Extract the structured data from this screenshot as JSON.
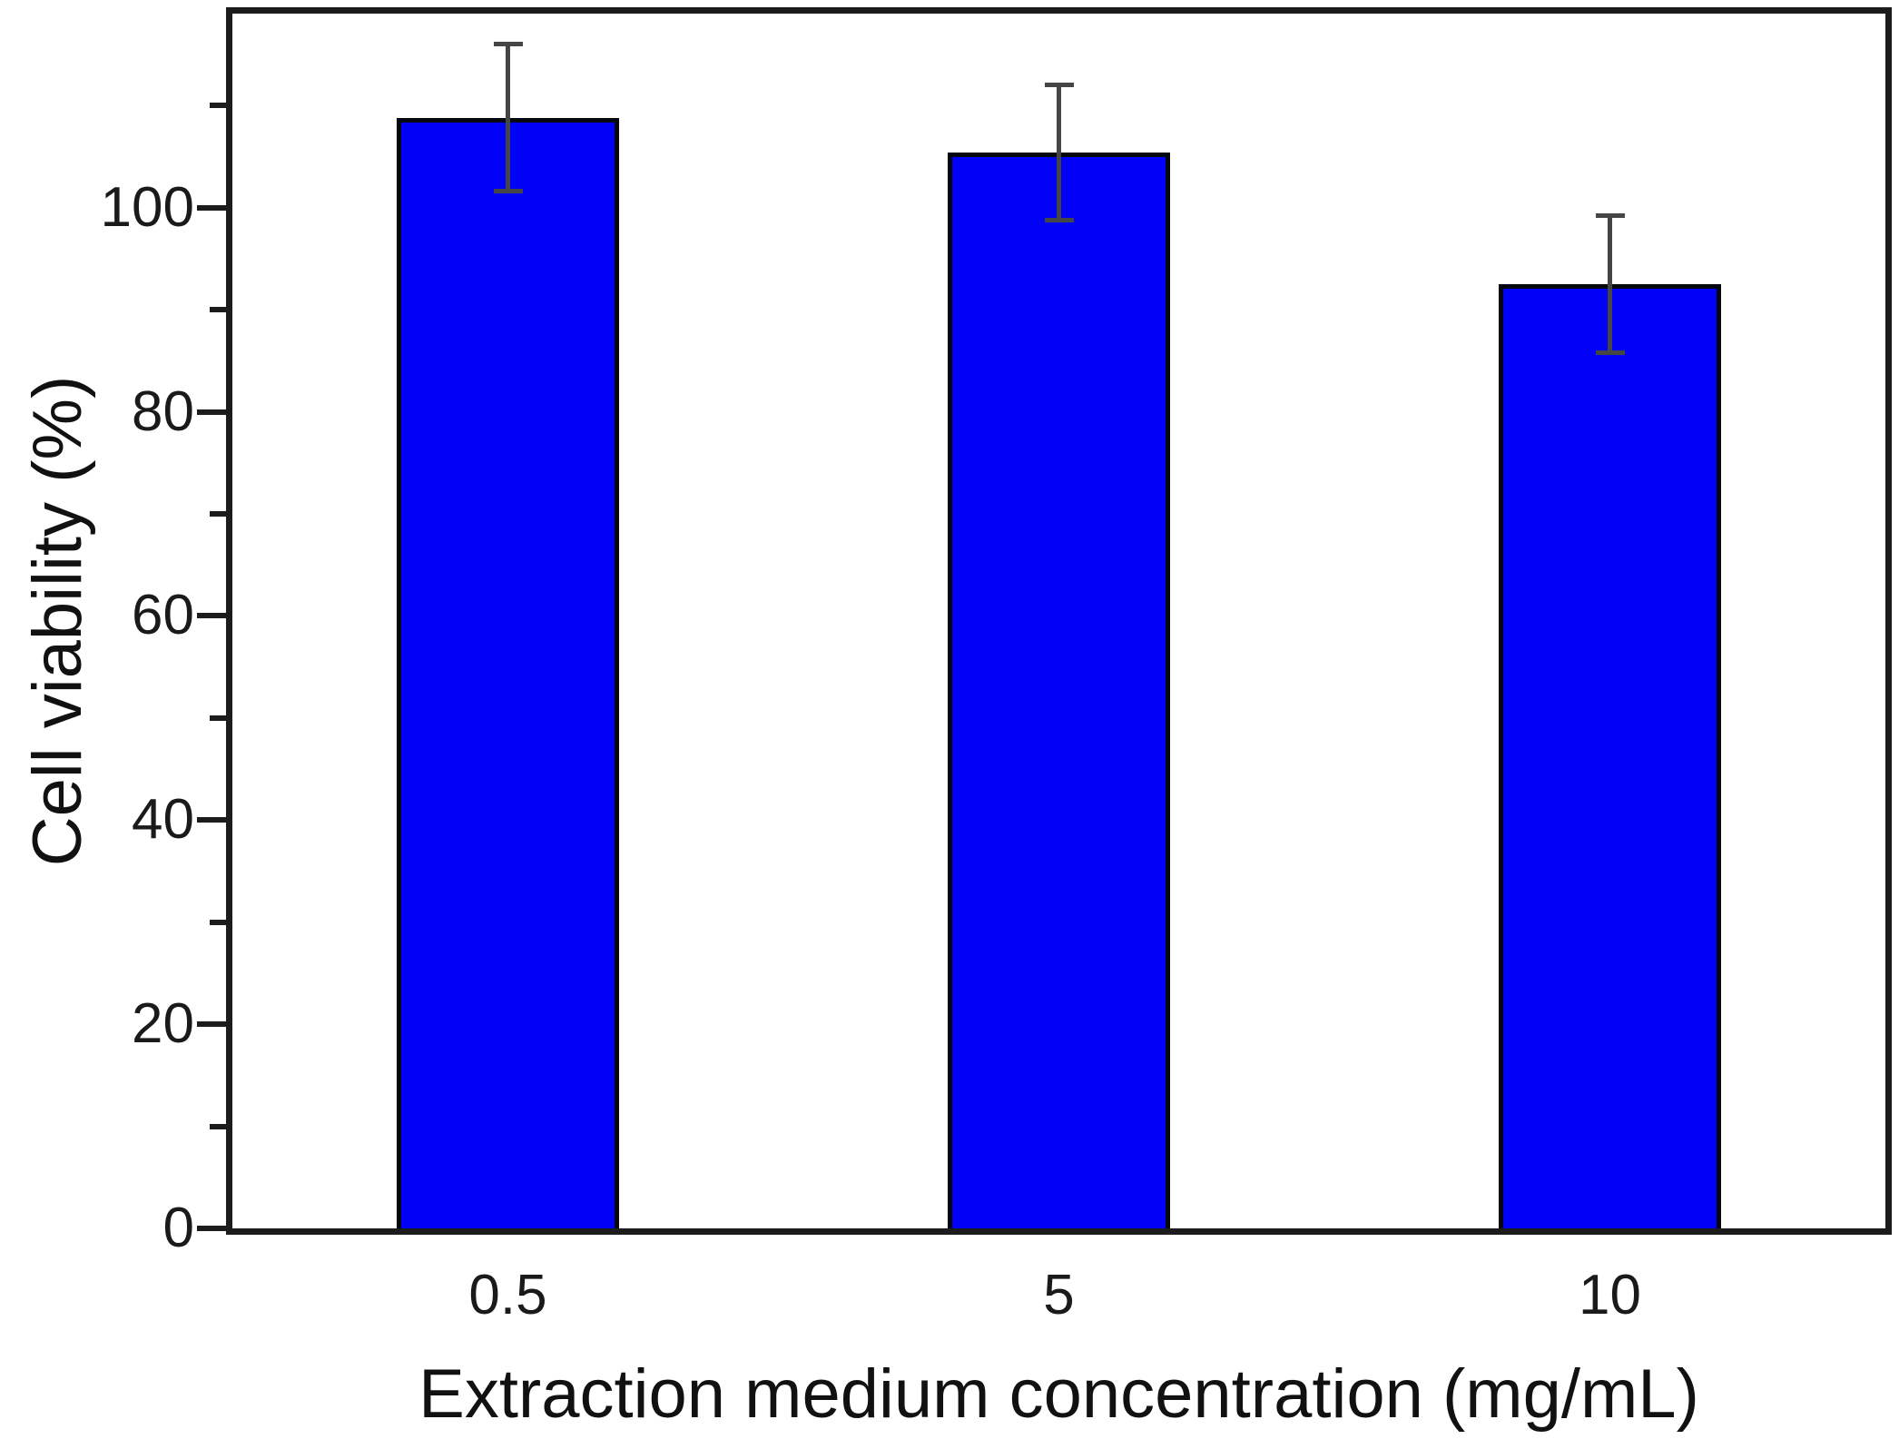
{
  "chart_data": {
    "type": "bar",
    "title": "",
    "xlabel": "Extraction medium concentration (mg/mL)",
    "ylabel": "Cell viability (%)",
    "categories": [
      "0.5",
      "5",
      "10"
    ],
    "series": [
      {
        "name": "Cell viability",
        "values": [
          108.8,
          105.4,
          92.5
        ],
        "errors_plus": [
          7.2,
          6.6,
          6.7
        ],
        "errors_minus": [
          7.2,
          6.6,
          6.7
        ]
      }
    ],
    "ylim": [
      0,
      119
    ],
    "ytick_major": [
      0,
      20,
      40,
      60,
      80,
      100
    ],
    "ytick_minor": [
      10,
      30,
      50,
      70,
      90,
      110
    ],
    "grid": "off",
    "legend": "none",
    "colors": {
      "bar_fill": "#0101f8",
      "bar_border": "#06060e",
      "error_bar": "#454545",
      "frame": "#1c1c1c",
      "text": "#111111",
      "background": "#ffffff"
    }
  }
}
